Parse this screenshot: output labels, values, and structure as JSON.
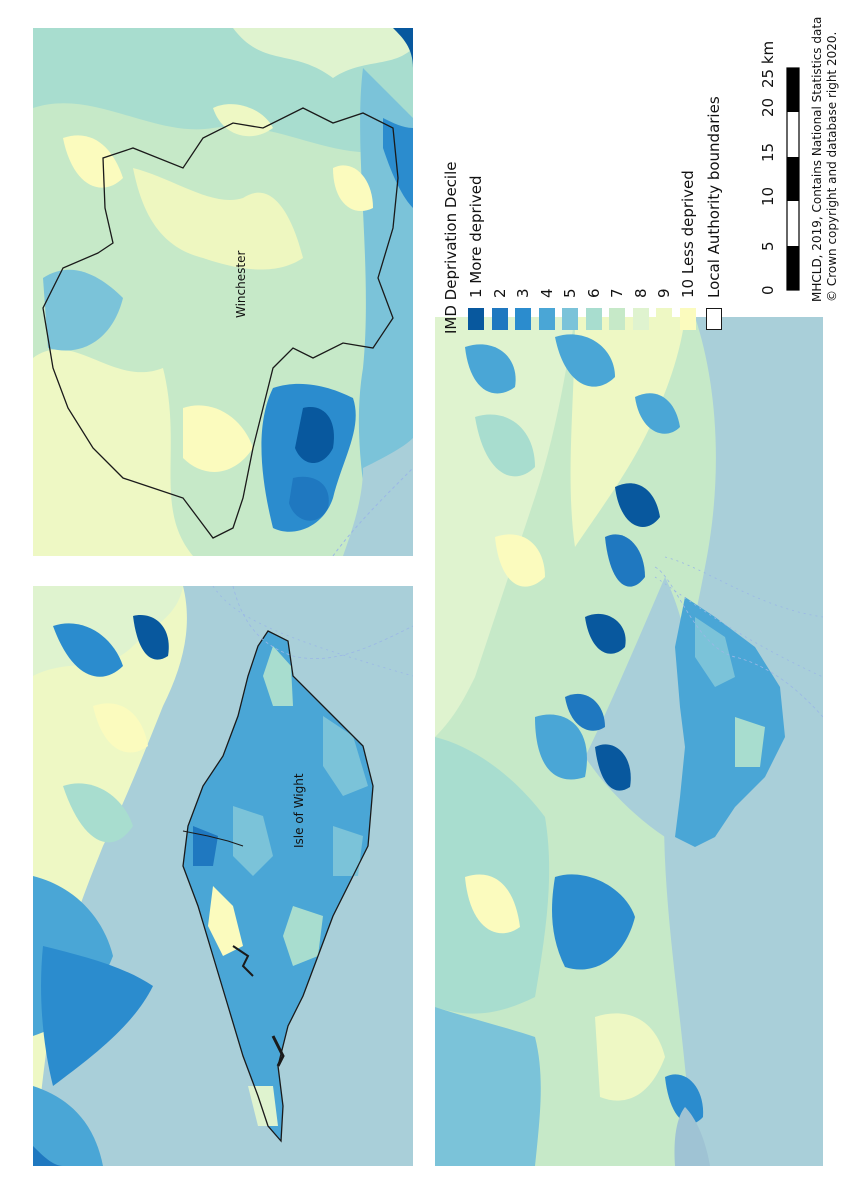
{
  "maps": {
    "winchester_label": "Winchester",
    "wight_label": "Isle of Wight"
  },
  "legend": {
    "title": "IMD Deprivation Decile",
    "items": [
      {
        "label": "1 More deprived",
        "color": "#08589e"
      },
      {
        "label": "2",
        "color": "#1f78c0"
      },
      {
        "label": "3",
        "color": "#2b8cce"
      },
      {
        "label": "4",
        "color": "#4aa6d6"
      },
      {
        "label": "5",
        "color": "#7bc3d9"
      },
      {
        "label": "6",
        "color": "#a8ddcf"
      },
      {
        "label": "7",
        "color": "#c6e9c8"
      },
      {
        "label": "8",
        "color": "#dff3cf"
      },
      {
        "label": "9",
        "color": "#eef8c4"
      },
      {
        "label": "10 Less deprived",
        "color": "#fbfbbe"
      }
    ],
    "boundary_label": "Local Authority boundaries"
  },
  "scale": {
    "ticks": [
      "0",
      "5",
      "10",
      "15",
      "20",
      "25 km"
    ]
  },
  "attribution": {
    "line1": "MHCLD, 2019, Contains National Statistics data",
    "line2": "© Crown copyright and database right 2020."
  },
  "colors": {
    "sea": "#a9cfd9",
    "boundary": "#1a1a1a"
  }
}
